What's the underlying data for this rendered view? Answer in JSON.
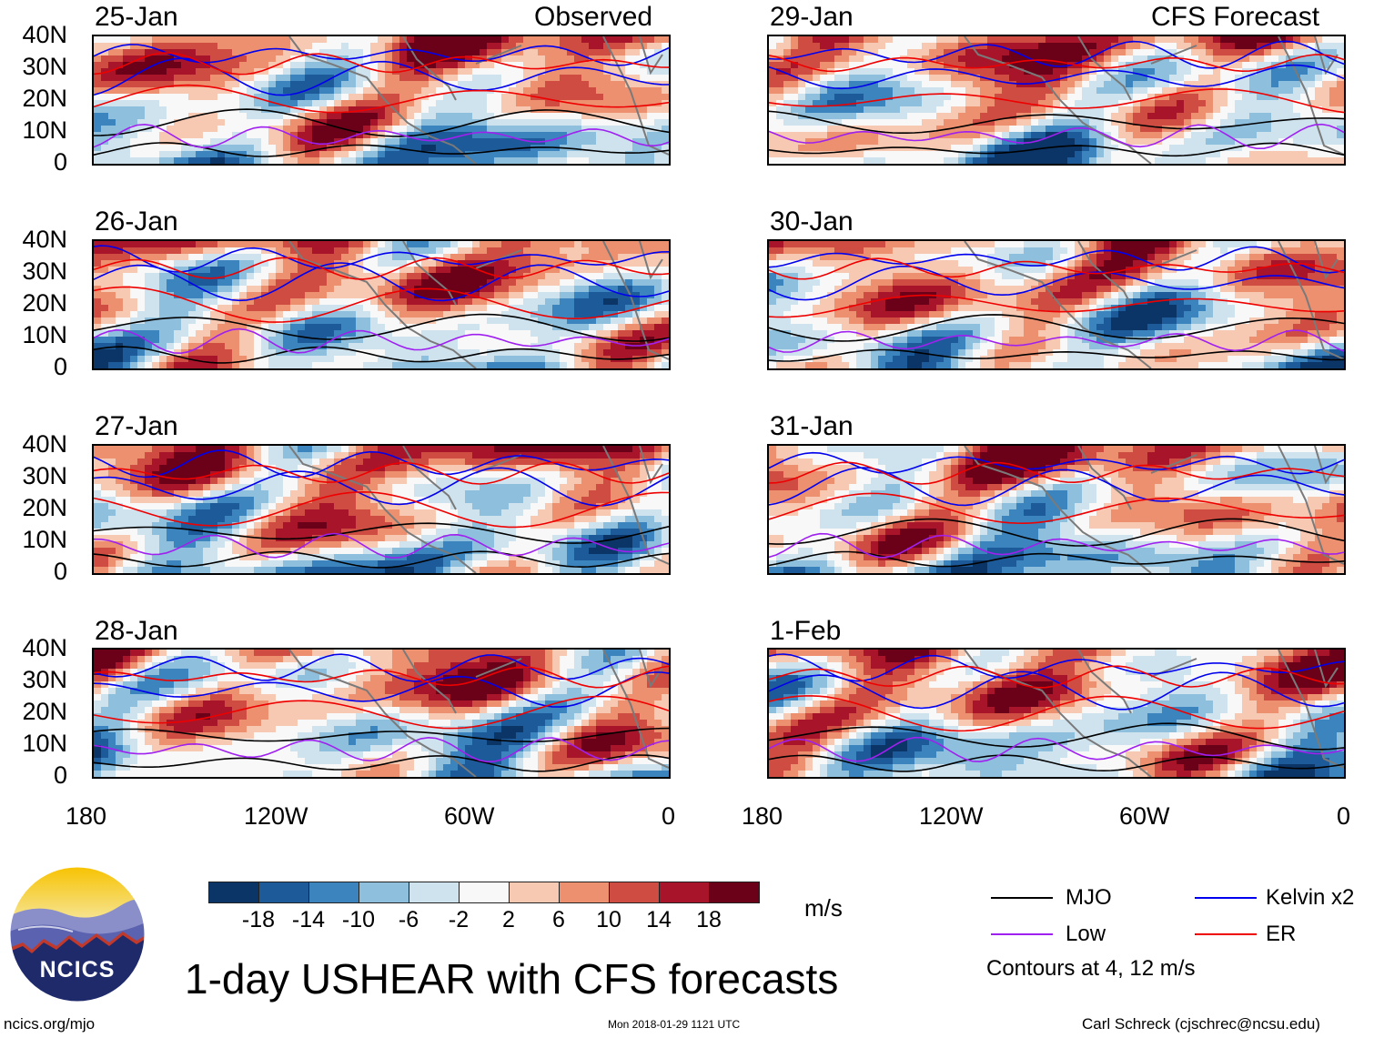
{
  "left_column_tag": "Observed",
  "right_column_tag": "CFS Forecast",
  "panels": [
    {
      "date": "25-Jan",
      "column": "observed",
      "seed": 1
    },
    {
      "date": "26-Jan",
      "column": "observed",
      "seed": 2
    },
    {
      "date": "27-Jan",
      "column": "observed",
      "seed": 3
    },
    {
      "date": "28-Jan",
      "column": "observed",
      "seed": 4
    },
    {
      "date": "29-Jan",
      "column": "forecast",
      "seed": 5
    },
    {
      "date": "30-Jan",
      "column": "forecast",
      "seed": 6
    },
    {
      "date": "31-Jan",
      "column": "forecast",
      "seed": 7
    },
    {
      "date": "1-Feb",
      "column": "forecast",
      "seed": 8
    }
  ],
  "lat_ticks": [
    "40N",
    "30N",
    "20N",
    "10N",
    "0"
  ],
  "lon_ticks": [
    "180",
    "120W",
    "60W",
    "0"
  ],
  "colorbar": {
    "labels": [
      "-18",
      "-14",
      "-10",
      "-6",
      "-2",
      "2",
      "6",
      "10",
      "14",
      "18"
    ],
    "colors": [
      "#0b3567",
      "#1d5a9a",
      "#3b84bd",
      "#8ebfdc",
      "#cfe3ef",
      "#f8f8f8",
      "#f8c9b2",
      "#ec9070",
      "#cf4c42",
      "#a8152a",
      "#6b0019"
    ],
    "units": "m/s"
  },
  "legend": {
    "items": [
      {
        "label": "MJO",
        "color": "#000000"
      },
      {
        "label": "Kelvin x2",
        "color": "#0000ee"
      },
      {
        "label": "Low",
        "color": "#a020f0"
      },
      {
        "label": "ER",
        "color": "#ee0000"
      }
    ],
    "note": "Contours at 4, 12 m/s"
  },
  "logo": {
    "text": "NCICS"
  },
  "main_title": "1-day USHEAR with CFS forecasts",
  "footer": {
    "left": "ncics.org/mjo",
    "center": "Mon 2018-01-29 1121 UTC",
    "right": "Carl Schreck (cjschrec@ncsu.edu)"
  }
}
